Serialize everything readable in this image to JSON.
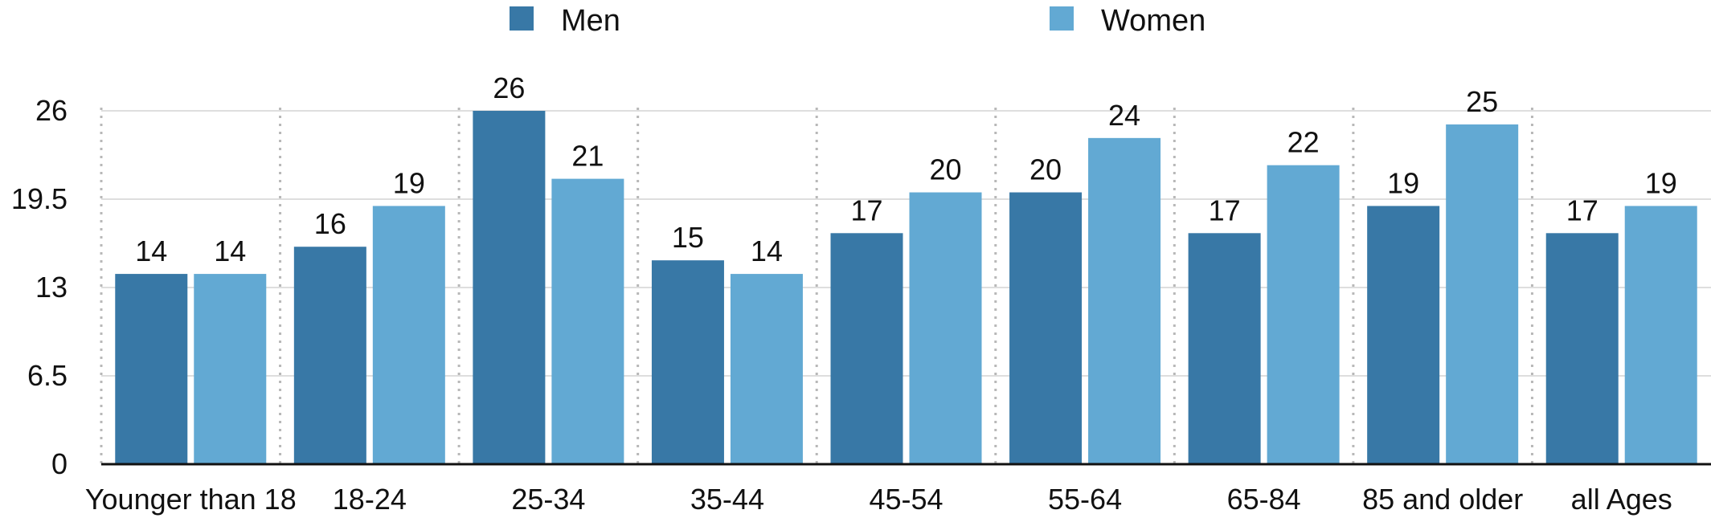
{
  "chart_data": {
    "type": "bar",
    "categories": [
      "Younger than 18",
      "18-24",
      "25-34",
      "35-44",
      "45-54",
      "55-64",
      "65-84",
      "85 and older",
      "all Ages"
    ],
    "series": [
      {
        "name": "Men",
        "values": [
          14,
          16,
          26,
          15,
          17,
          20,
          17,
          19,
          17
        ],
        "color": "#3878a6"
      },
      {
        "name": "Women",
        "values": [
          14,
          19,
          21,
          14,
          20,
          24,
          22,
          25,
          19
        ],
        "color": "#62a9d3"
      }
    ],
    "yticks": [
      0,
      6.5,
      13,
      19.5,
      26
    ],
    "ytick_labels": [
      "0",
      "6.5",
      "13",
      "19.5",
      "26"
    ],
    "ylim": [
      0,
      26
    ],
    "legend": "top",
    "grid": true,
    "title": "",
    "xlabel": "",
    "ylabel": ""
  }
}
